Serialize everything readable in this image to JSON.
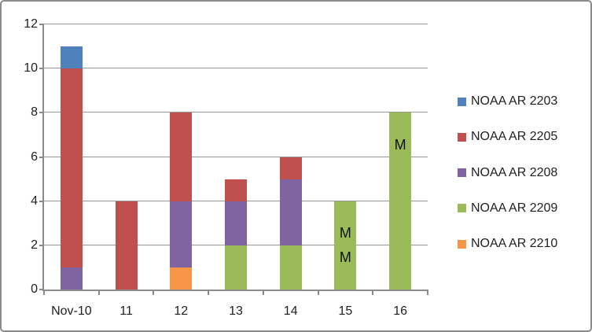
{
  "chart_data": {
    "type": "bar",
    "stacked": true,
    "title": "",
    "categories": [
      "Nov-10",
      "11",
      "12",
      "13",
      "14",
      "15",
      "16"
    ],
    "series": [
      {
        "name": "NOAA AR 2203",
        "color": "#4F81BD",
        "values": [
          1,
          0,
          0,
          0,
          0,
          0,
          0
        ]
      },
      {
        "name": "NOAA AR 2205",
        "color": "#C0504D",
        "values": [
          9,
          4,
          4,
          1,
          1,
          0,
          0
        ]
      },
      {
        "name": "NOAA AR 2208",
        "color": "#8064A2",
        "values": [
          1,
          0,
          3,
          2,
          3,
          0,
          0
        ]
      },
      {
        "name": "NOAA AR 2209",
        "color": "#9BBB59",
        "values": [
          0,
          0,
          0,
          2,
          2,
          4,
          8
        ]
      },
      {
        "name": "NOAA AR 2210",
        "color": "#F79646",
        "values": [
          0,
          0,
          1,
          0,
          0,
          0,
          0
        ]
      }
    ],
    "stack_order_bottom_to_top": [
      "NOAA AR 2210",
      "NOAA AR 2209",
      "NOAA AR 2208",
      "NOAA AR 2205",
      "NOAA AR 2203"
    ],
    "bar_totals": [
      11,
      4,
      8,
      5,
      6,
      4,
      8
    ],
    "xlabel": "",
    "ylabel": "",
    "ylim": [
      0,
      12
    ],
    "yticks": [
      0,
      2,
      4,
      6,
      8,
      10,
      12
    ],
    "grid": true,
    "legend_position": "right",
    "annotations": [
      {
        "category": "15",
        "y": 2.55,
        "label": "M"
      },
      {
        "category": "15",
        "y": 1.45,
        "label": "M"
      },
      {
        "category": "16",
        "y": 6.55,
        "label": "M"
      }
    ],
    "colors": {
      "gridline": "#979797",
      "axis": "#8b8b8b",
      "text": "#1f1f1f",
      "annotation": "#111111",
      "background": "#ffffff",
      "frame_border": "#8b8b8b"
    }
  }
}
